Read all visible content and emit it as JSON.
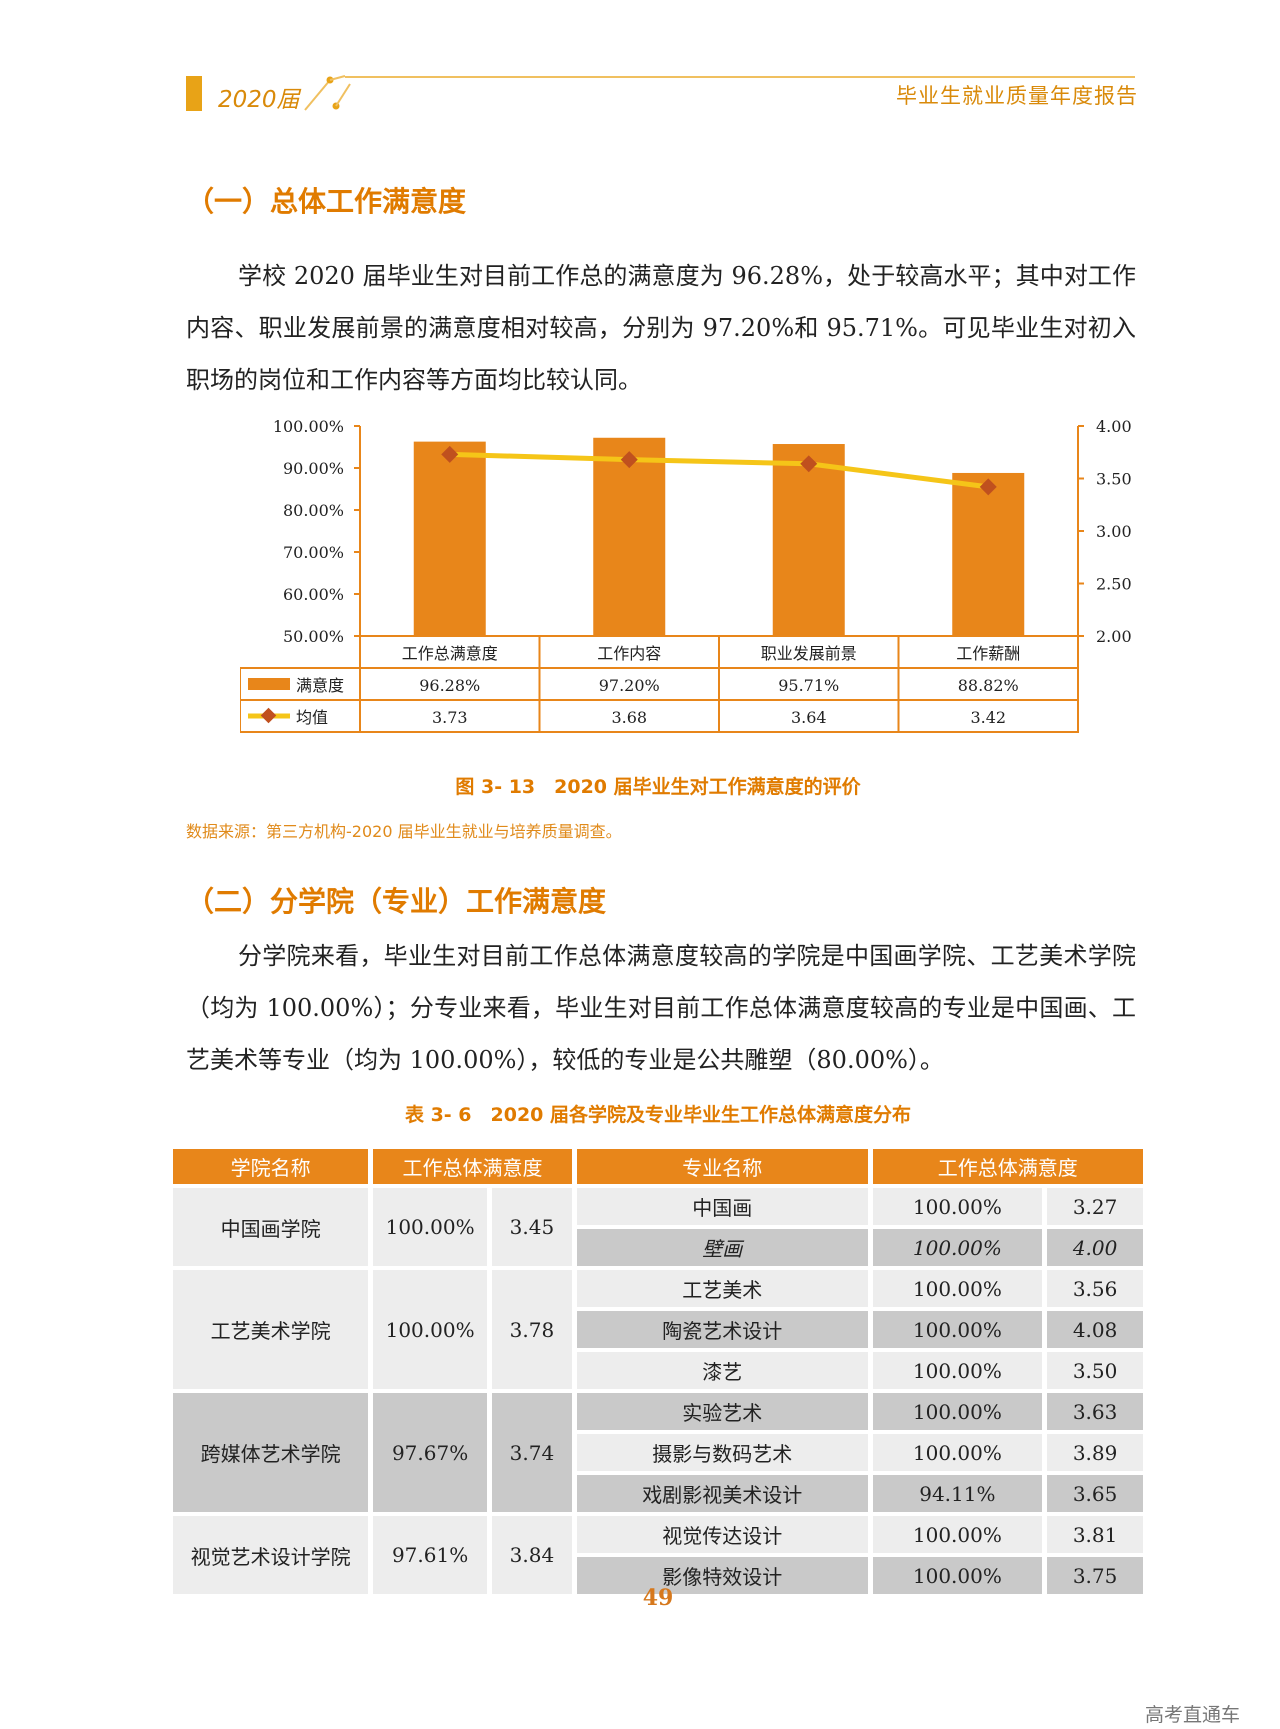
{
  "header": {
    "year": "2020届",
    "title": "毕业生就业质量年度报告"
  },
  "section1": {
    "title": "（一）总体工作满意度",
    "paragraph": "学校 2020 届毕业生对目前工作总的满意度为 96.28%，处于较高水平；其中对工作内容、职业发展前景的满意度相对较高，分别为 97.20%和 95.71%。可见毕业生对初入职场的岗位和工作内容等方面均比较认同。"
  },
  "chart_data": {
    "type": "bar",
    "categories": [
      "工作总满意度",
      "工作内容",
      "职业发展前景",
      "工作薪酬"
    ],
    "series": [
      {
        "name": "满意度",
        "type": "bar",
        "axis": "left",
        "values": [
          96.28,
          97.2,
          95.71,
          88.82
        ],
        "labels": [
          "96.28%",
          "97.20%",
          "95.71%",
          "88.82%"
        ],
        "color": "#E8861A"
      },
      {
        "name": "均值",
        "type": "line",
        "axis": "right",
        "values": [
          3.73,
          3.68,
          3.64,
          3.42
        ],
        "labels": [
          "3.73",
          "3.68",
          "3.64",
          "3.42"
        ],
        "color": "#F5C518",
        "marker_color": "#C0501E"
      }
    ],
    "y_left": {
      "range": [
        50,
        100
      ],
      "ticks": [
        "100.00%",
        "90.00%",
        "80.00%",
        "70.00%",
        "60.00%",
        "50.00%"
      ],
      "tick_values": [
        100,
        90,
        80,
        70,
        60,
        50
      ]
    },
    "y_right": {
      "range": [
        2.0,
        4.0
      ],
      "ticks": [
        "4.00",
        "3.50",
        "3.00",
        "2.50",
        "2.00"
      ],
      "tick_values": [
        4.0,
        3.5,
        3.0,
        2.5,
        2.0
      ]
    },
    "data_table": true,
    "axis_color": "#E8861A"
  },
  "figure": {
    "caption": "图 3- 13　2020 届毕业生对工作满意度的评价",
    "source": "数据来源：第三方机构-2020 届毕业生就业与培养质量调查。"
  },
  "section2": {
    "title": "（二）分学院（专业）工作满意度",
    "paragraph": "分学院来看，毕业生对目前工作总体满意度较高的学院是中国画学院、工艺美术学院（均为 100.00%）；分专业来看，毕业生对目前工作总体满意度较高的专业是中国画、工艺美术等专业（均为 100.00%），较低的专业是公共雕塑（80.00%）。"
  },
  "table": {
    "caption": "表 3- 6　2020 届各学院及专业毕业生工作总体满意度分布",
    "headers": [
      "学院名称",
      "工作总体满意度",
      "专业名称",
      "工作总体满意度"
    ],
    "colleges": [
      {
        "name": "中国画学院",
        "rate": "100.00%",
        "mean": "3.45",
        "shade": "light",
        "majors": [
          {
            "name": "中国画",
            "rate": "100.00%",
            "mean": "3.27",
            "shade": "light"
          },
          {
            "name": "壁画",
            "rate": "100.00%",
            "mean": "4.00",
            "shade": "dark",
            "italic": true
          }
        ]
      },
      {
        "name": "工艺美术学院",
        "rate": "100.00%",
        "mean": "3.78",
        "shade": "light",
        "majors": [
          {
            "name": "工艺美术",
            "rate": "100.00%",
            "mean": "3.56",
            "shade": "light"
          },
          {
            "name": "陶瓷艺术设计",
            "rate": "100.00%",
            "mean": "4.08",
            "shade": "dark"
          },
          {
            "name": "漆艺",
            "rate": "100.00%",
            "mean": "3.50",
            "shade": "light"
          }
        ]
      },
      {
        "name": "跨媒体艺术学院",
        "rate": "97.67%",
        "mean": "3.74",
        "shade": "dark",
        "majors": [
          {
            "name": "实验艺术",
            "rate": "100.00%",
            "mean": "3.63",
            "shade": "dark"
          },
          {
            "name": "摄影与数码艺术",
            "rate": "100.00%",
            "mean": "3.89",
            "shade": "light"
          },
          {
            "name": "戏剧影视美术设计",
            "rate": "94.11%",
            "mean": "3.65",
            "shade": "dark"
          }
        ]
      },
      {
        "name": "视觉艺术设计学院",
        "rate": "97.61%",
        "mean": "3.84",
        "shade": "light",
        "majors": [
          {
            "name": "视觉传达设计",
            "rate": "100.00%",
            "mean": "3.81",
            "shade": "light"
          },
          {
            "name": "影像特效设计",
            "rate": "100.00%",
            "mean": "3.75",
            "shade": "dark"
          }
        ]
      }
    ]
  },
  "footer": {
    "page_number": "49",
    "watermark": "高考直通车"
  }
}
